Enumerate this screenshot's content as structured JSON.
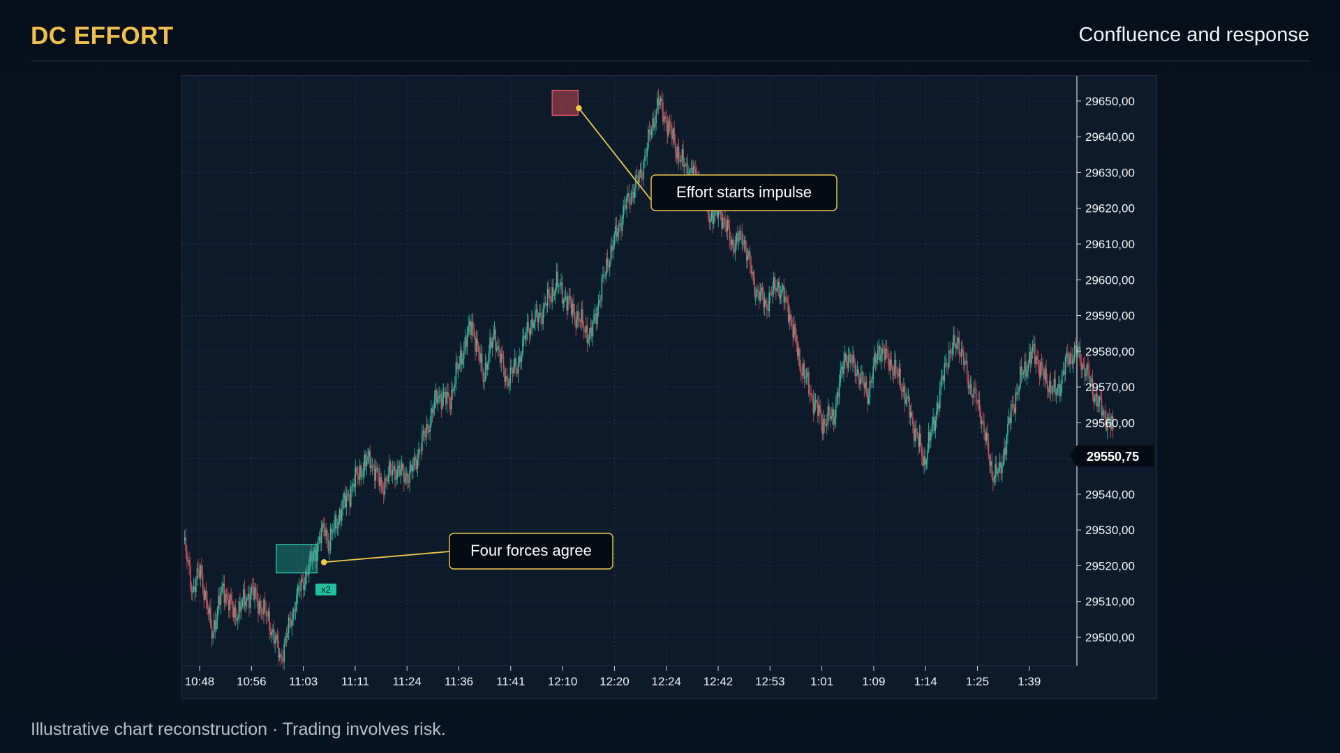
{
  "header": {
    "brand": "DC EFFORT",
    "subtitle": "Confluence and response"
  },
  "footer": {
    "disclaimer": "Illustrative chart reconstruction · Trading involves risk."
  },
  "chart_data": {
    "type": "candlestick",
    "x_tick_labels": [
      "10:48",
      "10:56",
      "11:03",
      "11:11",
      "11:24",
      "11:36",
      "11:41",
      "12:10",
      "12:20",
      "12:24",
      "12:42",
      "12:53",
      "1:01",
      "1:09",
      "1:14",
      "1:25",
      "1:39"
    ],
    "y_tick_labels": [
      "29650,00",
      "29640,00",
      "29630,00",
      "29620,00",
      "29610,00",
      "29600,00",
      "29590,00",
      "29580,00",
      "29570,00",
      "29560,00",
      "29550,00",
      "29540,00",
      "29530,00",
      "29520,00",
      "29510,00",
      "29500,00"
    ],
    "ylim": [
      29492,
      29657
    ],
    "y_axis_side": "right",
    "current_price": 29550.75,
    "current_price_label": "29550,75",
    "grid": true,
    "colors": {
      "up": "#26c6a8",
      "down": "#e0505a",
      "annotation": "#f0c94a",
      "grid": "#203246"
    },
    "price_path": [
      [
        0,
        29527
      ],
      [
        8,
        29513
      ],
      [
        15,
        29519
      ],
      [
        25,
        29501
      ],
      [
        35,
        29514
      ],
      [
        45,
        29506
      ],
      [
        60,
        29513
      ],
      [
        75,
        29505
      ],
      [
        86,
        29494
      ],
      [
        100,
        29511
      ],
      [
        115,
        29523
      ],
      [
        125,
        29531
      ],
      [
        128,
        29526
      ],
      [
        140,
        29536
      ],
      [
        155,
        29546
      ],
      [
        165,
        29550
      ],
      [
        175,
        29542
      ],
      [
        185,
        29547
      ],
      [
        200,
        29545
      ],
      [
        215,
        29558
      ],
      [
        225,
        29568
      ],
      [
        235,
        29566
      ],
      [
        245,
        29578
      ],
      [
        255,
        29588
      ],
      [
        265,
        29573
      ],
      [
        275,
        29585
      ],
      [
        285,
        29572
      ],
      [
        295,
        29576
      ],
      [
        305,
        29587
      ],
      [
        315,
        29590
      ],
      [
        330,
        29599
      ],
      [
        345,
        29591
      ],
      [
        360,
        29584
      ],
      [
        375,
        29605
      ],
      [
        390,
        29620
      ],
      [
        405,
        29630
      ],
      [
        412,
        29640
      ],
      [
        420,
        29650
      ],
      [
        430,
        29642
      ],
      [
        440,
        29633
      ],
      [
        455,
        29628
      ],
      [
        465,
        29618
      ],
      [
        475,
        29619
      ],
      [
        485,
        29610
      ],
      [
        495,
        29612
      ],
      [
        505,
        29598
      ],
      [
        515,
        29593
      ],
      [
        525,
        29599
      ],
      [
        535,
        29592
      ],
      [
        545,
        29577
      ],
      [
        555,
        29568
      ],
      [
        565,
        29560
      ],
      [
        575,
        29562
      ],
      [
        585,
        29579
      ],
      [
        595,
        29575
      ],
      [
        605,
        29568
      ],
      [
        615,
        29581
      ],
      [
        625,
        29577
      ],
      [
        635,
        29571
      ],
      [
        645,
        29560
      ],
      [
        655,
        29549
      ],
      [
        665,
        29562
      ],
      [
        675,
        29578
      ],
      [
        685,
        29583
      ],
      [
        695,
        29571
      ],
      [
        705,
        29563
      ],
      [
        715,
        29546
      ],
      [
        722,
        29546
      ],
      [
        732,
        29563
      ],
      [
        742,
        29574
      ],
      [
        752,
        29580
      ],
      [
        762,
        29572
      ],
      [
        772,
        29568
      ],
      [
        782,
        29578
      ],
      [
        790,
        29580
      ],
      [
        800,
        29573
      ],
      [
        808,
        29566
      ],
      [
        815,
        29562
      ],
      [
        822,
        29558
      ]
    ],
    "annotations": [
      {
        "label": "Effort starts impulse",
        "anchor_price": 29648,
        "zone_price_high": 29653,
        "zone_price_low": 29646,
        "color": "red"
      },
      {
        "label": "Four forces agree",
        "anchor_price": 29521,
        "zone_price_high": 29526,
        "zone_price_low": 29518,
        "color": "teal",
        "badge": "x2"
      }
    ]
  }
}
